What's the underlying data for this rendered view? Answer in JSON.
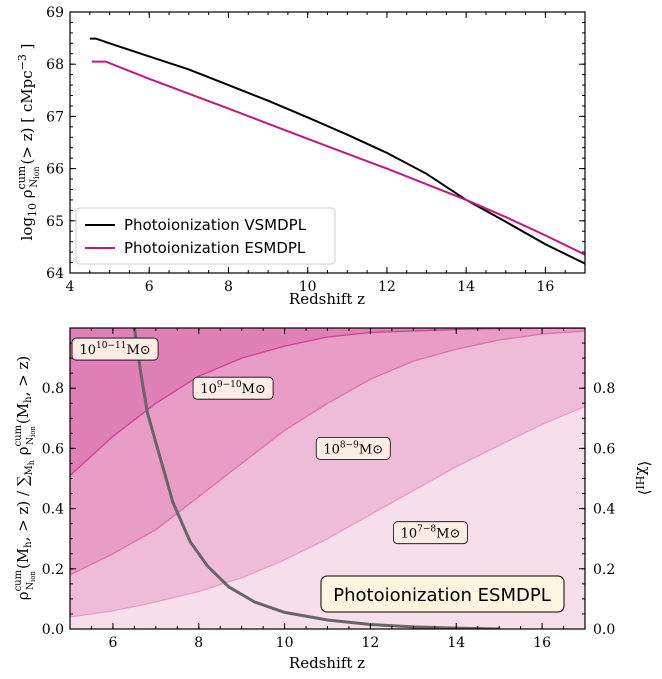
{
  "chart_data": [
    {
      "type": "line",
      "xlabel": "Redshift z",
      "ylabel": "log₁₀ ρ^cum_Nion(> z)   [ cMpc⁻³ ]",
      "xlim": [
        4,
        17
      ],
      "ylim": [
        64,
        69
      ],
      "xticks": [
        4,
        6,
        8,
        10,
        12,
        14,
        16
      ],
      "yticks": [
        64,
        65,
        66,
        67,
        68,
        69
      ],
      "legend_position": "lower-left",
      "series": [
        {
          "name": "Photoionization VSMDPL",
          "color": "#000000",
          "points": [
            [
              4.5,
              68.49
            ],
            [
              4.65,
              68.49
            ],
            [
              5,
              68.4
            ],
            [
              6,
              68.15
            ],
            [
              7,
              67.9
            ],
            [
              8,
              67.6
            ],
            [
              9,
              67.3
            ],
            [
              10,
              66.98
            ],
            [
              11,
              66.65
            ],
            [
              12,
              66.3
            ],
            [
              13,
              65.9
            ],
            [
              14,
              65.4
            ],
            [
              15,
              64.98
            ],
            [
              16,
              64.55
            ],
            [
              17,
              64.18
            ]
          ]
        },
        {
          "name": "Photoionization ESMDPL",
          "color": "#c2187d",
          "points": [
            [
              4.55,
              68.05
            ],
            [
              4.9,
              68.05
            ],
            [
              6,
              67.72
            ],
            [
              8,
              67.15
            ],
            [
              10,
              66.57
            ],
            [
              12,
              66.0
            ],
            [
              14,
              65.4
            ],
            [
              15,
              65.07
            ],
            [
              16,
              64.72
            ],
            [
              17,
              64.35
            ]
          ]
        }
      ]
    },
    {
      "type": "area",
      "xlabel": "Redshift z",
      "ylabel": "ρ^cum_Nion(M_h, > z) / Σ_Mh ρ^cum_Nion(M_h, > z)",
      "ylabel_right": "⟨χ_HI⟩",
      "xlim": [
        5,
        17
      ],
      "ylim": [
        0,
        1
      ],
      "xticks": [
        6,
        8,
        10,
        12,
        14,
        16
      ],
      "yticks": [
        0.0,
        0.2,
        0.4,
        0.6,
        0.8
      ],
      "right_yticks": [
        0.0,
        0.2,
        0.4,
        0.6,
        0.8
      ],
      "bands": [
        {
          "name": "10^{7−8} M_⊙",
          "label_base": "10",
          "label_sup": "7−8",
          "label_unit": "M_⊙",
          "label_at": [
            13.4,
            0.32
          ],
          "color": "#f6dfeb"
        },
        {
          "name": "10^{8−9} M_⊙",
          "label_base": "10",
          "label_sup": "8−9",
          "label_unit": "M_⊙",
          "label_at": [
            11.6,
            0.6
          ],
          "color": "#efbcd8"
        },
        {
          "name": "10^{9−10} M_⊙",
          "label_base": "10",
          "label_sup": "9−10",
          "label_unit": "M_⊙",
          "label_at": [
            8.8,
            0.8
          ],
          "color": "#e79dc6"
        },
        {
          "name": "10^{10−11} M_⊙",
          "label_base": "10",
          "label_sup": "10−11",
          "label_unit": "M_⊙",
          "label_at": [
            6.05,
            0.93
          ],
          "color": "#df80b6"
        }
      ],
      "boundaries": [
        {
          "color": "#e89bc6",
          "points": [
            [
              5,
              0.04
            ],
            [
              6,
              0.06
            ],
            [
              7,
              0.09
            ],
            [
              8,
              0.125
            ],
            [
              9,
              0.17
            ],
            [
              10,
              0.23
            ],
            [
              11,
              0.3
            ],
            [
              12,
              0.38
            ],
            [
              13,
              0.46
            ],
            [
              14,
              0.54
            ],
            [
              15,
              0.61
            ],
            [
              16,
              0.68
            ],
            [
              17,
              0.74
            ]
          ]
        },
        {
          "color": "#de6fad",
          "points": [
            [
              5,
              0.18
            ],
            [
              6,
              0.25
            ],
            [
              7,
              0.33
            ],
            [
              8,
              0.44
            ],
            [
              9,
              0.55
            ],
            [
              10,
              0.66
            ],
            [
              11,
              0.75
            ],
            [
              12,
              0.83
            ],
            [
              13,
              0.89
            ],
            [
              14,
              0.93
            ],
            [
              15,
              0.96
            ],
            [
              16,
              0.98
            ],
            [
              17,
              0.99
            ]
          ]
        },
        {
          "color": "#cf4096",
          "points": [
            [
              5,
              0.51
            ],
            [
              6,
              0.64
            ],
            [
              7,
              0.75
            ],
            [
              8,
              0.84
            ],
            [
              9,
              0.9
            ],
            [
              10,
              0.94
            ],
            [
              11,
              0.97
            ],
            [
              12,
              0.985
            ],
            [
              13,
              0.99
            ],
            [
              14,
              0.995
            ],
            [
              15,
              0.998
            ],
            [
              16,
              0.999
            ],
            [
              17,
              0.999
            ]
          ]
        },
        {
          "color": "#c2187d",
          "points": [
            [
              5,
              0.88
            ],
            [
              6,
              0.93
            ],
            [
              7,
              0.96
            ],
            [
              8,
              0.975
            ],
            [
              9,
              0.985
            ],
            [
              10,
              0.99
            ],
            [
              11,
              0.995
            ],
            [
              12,
              0.997
            ],
            [
              13,
              0.998
            ],
            [
              14,
              0.999
            ],
            [
              15,
              0.999
            ],
            [
              16,
              1.0
            ],
            [
              17,
              1.0
            ]
          ]
        }
      ],
      "neutral_fraction": {
        "color": "#666666",
        "points": [
          [
            6.5,
            1.0
          ],
          [
            6.65,
            0.85
          ],
          [
            6.8,
            0.72
          ],
          [
            7.0,
            0.62
          ],
          [
            7.4,
            0.42
          ],
          [
            7.8,
            0.29
          ],
          [
            8.2,
            0.21
          ],
          [
            8.7,
            0.14
          ],
          [
            9.3,
            0.09
          ],
          [
            10,
            0.055
          ],
          [
            11,
            0.03
          ],
          [
            12,
            0.015
          ],
          [
            13,
            0.007
          ],
          [
            14,
            0.003
          ],
          [
            15,
            0.0
          ]
        ]
      },
      "annotation": "Photoionization ESMDPL",
      "annotation_bg": "#fdf5df"
    }
  ]
}
